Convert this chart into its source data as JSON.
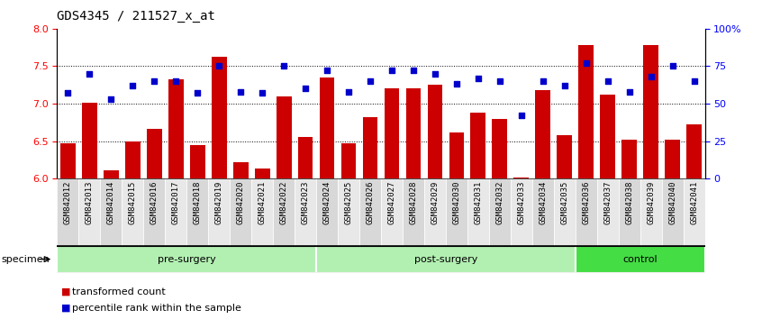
{
  "title": "GDS4345 / 211527_x_at",
  "samples": [
    "GSM842012",
    "GSM842013",
    "GSM842014",
    "GSM842015",
    "GSM842016",
    "GSM842017",
    "GSM842018",
    "GSM842019",
    "GSM842020",
    "GSM842021",
    "GSM842022",
    "GSM842023",
    "GSM842024",
    "GSM842025",
    "GSM842026",
    "GSM842027",
    "GSM842028",
    "GSM842029",
    "GSM842030",
    "GSM842031",
    "GSM842032",
    "GSM842033",
    "GSM842034",
    "GSM842035",
    "GSM842036",
    "GSM842037",
    "GSM842038",
    "GSM842039",
    "GSM842040",
    "GSM842041"
  ],
  "transformed_count": [
    6.47,
    7.01,
    6.11,
    6.5,
    6.67,
    7.32,
    6.45,
    7.62,
    6.22,
    6.13,
    7.1,
    6.55,
    7.35,
    6.47,
    6.82,
    7.2,
    7.2,
    7.25,
    6.62,
    6.88,
    6.8,
    6.02,
    7.18,
    6.58,
    7.78,
    7.12,
    6.52,
    7.78,
    6.52,
    6.72
  ],
  "percentile_rank": [
    57,
    70,
    53,
    62,
    65,
    65,
    57,
    75,
    58,
    57,
    75,
    60,
    72,
    58,
    65,
    72,
    72,
    70,
    63,
    67,
    65,
    42,
    65,
    62,
    77,
    65,
    58,
    68,
    75,
    65
  ],
  "groups": [
    {
      "label": "pre-surgery",
      "start": 0,
      "end": 11
    },
    {
      "label": "post-surgery",
      "start": 12,
      "end": 23
    },
    {
      "label": "control",
      "start": 24,
      "end": 29
    }
  ],
  "group_colors": {
    "pre-surgery": "#b2f0b2",
    "post-surgery": "#b2f0b2",
    "control": "#44dd44"
  },
  "bar_color": "#cc0000",
  "dot_color": "#0000cc",
  "ylim_left": [
    6,
    8
  ],
  "ylim_right": [
    0,
    100
  ],
  "yticks_left": [
    6,
    6.5,
    7,
    7.5,
    8
  ],
  "yticks_right": [
    0,
    25,
    50,
    75,
    100
  ],
  "ytick_labels_right": [
    "0",
    "25",
    "50",
    "75",
    "100%"
  ],
  "legend_bar_label": "transformed count",
  "legend_dot_label": "percentile rank within the sample",
  "specimen_label": "specimen",
  "bar_width": 0.7,
  "cell_bg_color": "#d8d8d8",
  "cell_alt_color": "#e8e8e8"
}
